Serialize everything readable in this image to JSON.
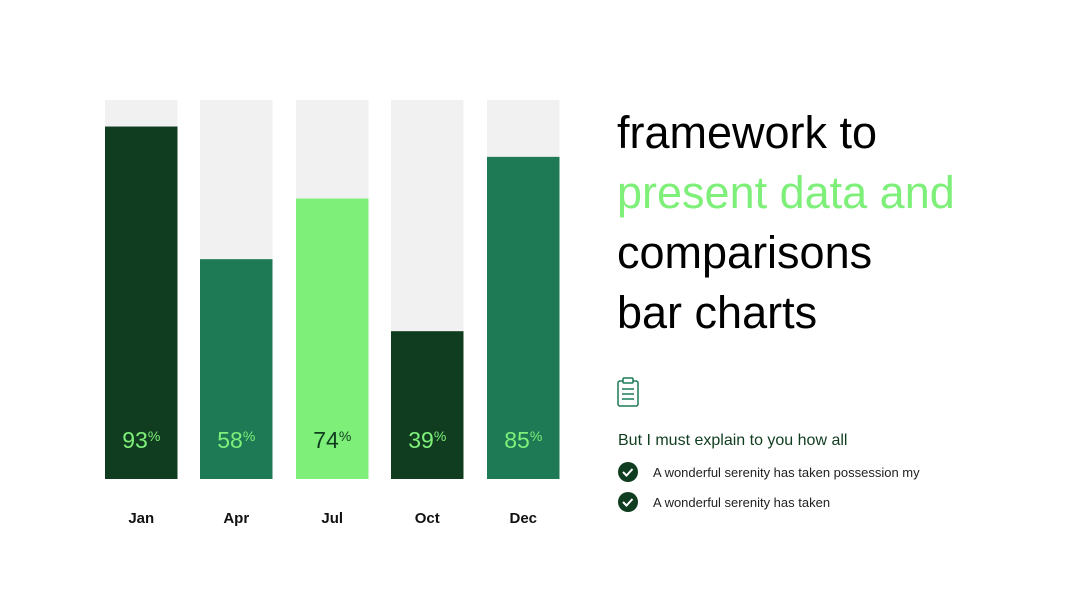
{
  "chart_data": {
    "type": "bar",
    "categories": [
      "Jan",
      "Apr",
      "Jul",
      "Oct",
      "Dec"
    ],
    "values": [
      93,
      58,
      74,
      39,
      85
    ],
    "value_suffix": "%",
    "colors": [
      "#103d1f",
      "#1d7a55",
      "#7ef07a",
      "#103d1f",
      "#1d7a55"
    ],
    "label_colors": [
      "#7ef07a",
      "#7ef07a",
      "#103d1f",
      "#7ef07a",
      "#7ef07a"
    ],
    "track_color": "#f1f1f1",
    "ylim": [
      0,
      100
    ]
  },
  "heading": {
    "lines": [
      "framework to",
      "present data and",
      "comparisons",
      "bar charts"
    ],
    "highlight_line": 1
  },
  "subheading": "But I must explain to you how all",
  "bullets": [
    "A wonderful serenity has taken possession my",
    "A wonderful serenity has taken"
  ]
}
